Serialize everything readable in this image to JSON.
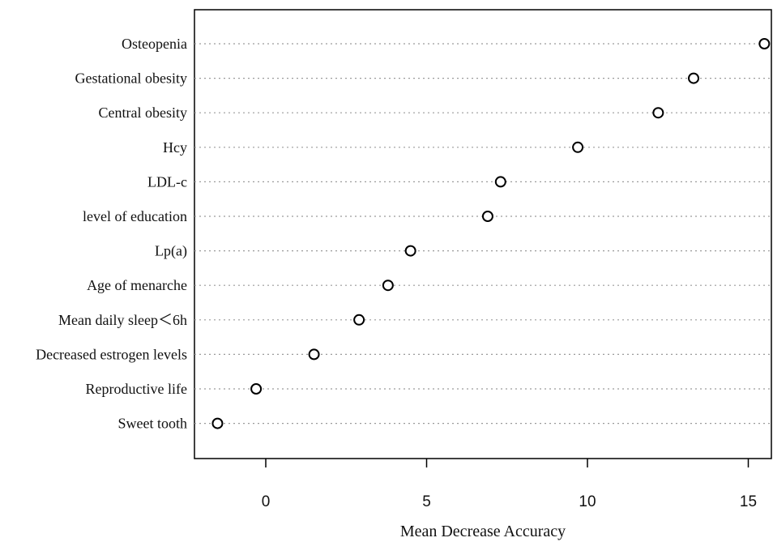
{
  "chart_data": {
    "type": "scatter",
    "title": "",
    "xlabel": "Mean Decrease Accuracy",
    "ylabel": "",
    "xlim": [
      -2.2,
      15.8
    ],
    "x_ticks": [
      0,
      5,
      10,
      15
    ],
    "grid": "dotted horizontal guide lines per category",
    "legend": "none",
    "categories": [
      "Osteopenia",
      "Gestational obesity",
      "Central obesity",
      "Hcy",
      "LDL-c",
      "level of education",
      "Lp(a)",
      "Age of menarche",
      "Mean daily sleep＜6h",
      "Decreased estrogen levels",
      "Reproductive life",
      "Sweet tooth"
    ],
    "values": [
      15.5,
      13.3,
      12.2,
      9.7,
      7.3,
      6.9,
      4.5,
      3.8,
      2.9,
      1.5,
      -0.3,
      -1.5
    ]
  }
}
